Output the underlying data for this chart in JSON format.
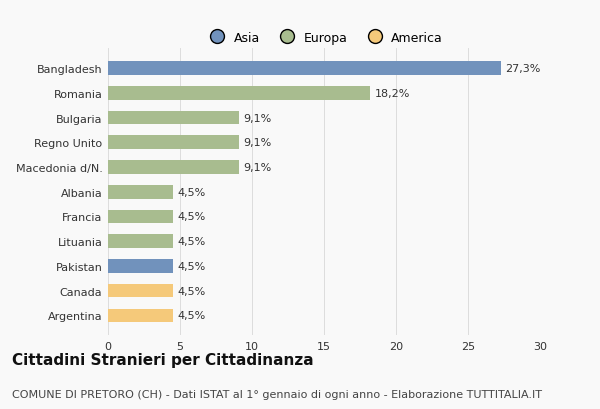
{
  "categories": [
    "Argentina",
    "Canada",
    "Pakistan",
    "Lituania",
    "Francia",
    "Albania",
    "Macedonia d/N.",
    "Regno Unito",
    "Bulgaria",
    "Romania",
    "Bangladesh"
  ],
  "values": [
    4.5,
    4.5,
    4.5,
    4.5,
    4.5,
    4.5,
    9.1,
    9.1,
    9.1,
    18.2,
    27.3
  ],
  "labels": [
    "4,5%",
    "4,5%",
    "4,5%",
    "4,5%",
    "4,5%",
    "4,5%",
    "9,1%",
    "9,1%",
    "9,1%",
    "18,2%",
    "27,3%"
  ],
  "colors": [
    "#f5c97a",
    "#f5c97a",
    "#7192bc",
    "#a8bc8f",
    "#a8bc8f",
    "#a8bc8f",
    "#a8bc8f",
    "#a8bc8f",
    "#a8bc8f",
    "#a8bc8f",
    "#7192bc"
  ],
  "legend_labels": [
    "Asia",
    "Europa",
    "America"
  ],
  "legend_colors": [
    "#7192bc",
    "#a8bc8f",
    "#f5c97a"
  ],
  "title": "Cittadini Stranieri per Cittadinanza",
  "subtitle": "COMUNE DI PRETORO (CH) - Dati ISTAT al 1° gennaio di ogni anno - Elaborazione TUTTITALIA.IT",
  "xlim": [
    0,
    30
  ],
  "xticks": [
    0,
    5,
    10,
    15,
    20,
    25,
    30
  ],
  "background_color": "#f9f9f9",
  "grid_color": "#dddddd",
  "bar_height": 0.55,
  "title_fontsize": 11,
  "subtitle_fontsize": 8,
  "label_fontsize": 8,
  "tick_fontsize": 8,
  "legend_fontsize": 9
}
